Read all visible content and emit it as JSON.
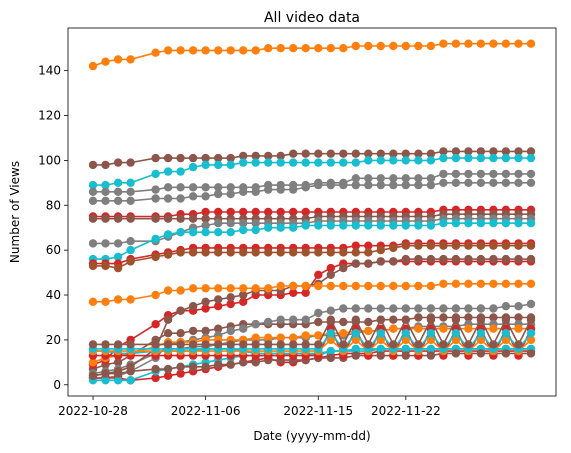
{
  "chart_data": {
    "type": "line",
    "title": "All video data",
    "xlabel": "Date (yyyy-mm-dd)",
    "ylabel": "Number of Views",
    "x_tick_labels": [
      "2022-10-28",
      "2022-11-06",
      "2022-11-15",
      "2022-11-22"
    ],
    "x_tick_dates": [
      "2022-10-28",
      "2022-11-06",
      "2022-11-15",
      "2022-11-22"
    ],
    "y_ticks": [
      0,
      20,
      40,
      60,
      80,
      100,
      120,
      140
    ],
    "ylim": [
      -5,
      159
    ],
    "xlim": [
      "2022-10-26",
      "2022-12-04"
    ],
    "grid": false,
    "legend": "none",
    "dates": [
      "2022-10-28",
      "2022-10-29",
      "2022-10-30",
      "2022-10-31",
      "2022-11-02",
      "2022-11-03",
      "2022-11-04",
      "2022-11-05",
      "2022-11-06",
      "2022-11-07",
      "2022-11-08",
      "2022-11-09",
      "2022-11-10",
      "2022-11-11",
      "2022-11-12",
      "2022-11-13",
      "2022-11-14",
      "2022-11-15",
      "2022-11-16",
      "2022-11-17",
      "2022-11-18",
      "2022-11-19",
      "2022-11-20",
      "2022-11-21",
      "2022-11-22",
      "2022-11-23",
      "2022-11-24",
      "2022-11-25",
      "2022-11-26",
      "2022-11-27",
      "2022-11-28",
      "2022-11-29",
      "2022-11-30",
      "2022-12-01",
      "2022-12-02"
    ],
    "series": [
      {
        "color": "#ff7f0e",
        "values": [
          142,
          144,
          145,
          145,
          148,
          149,
          149,
          149,
          149,
          149,
          149,
          149,
          149,
          150,
          150,
          150,
          150,
          150,
          150,
          150,
          151,
          151,
          151,
          151,
          151,
          151,
          151,
          152,
          152,
          152,
          152,
          152,
          152,
          152,
          152
        ]
      },
      {
        "color": "#8c564b",
        "values": [
          98,
          98,
          99,
          99,
          101,
          101,
          101,
          101,
          101,
          101,
          101,
          102,
          102,
          102,
          102,
          103,
          103,
          103,
          103,
          103,
          103,
          103,
          103,
          103,
          103,
          103,
          103,
          104,
          104,
          104,
          104,
          104,
          104,
          104,
          104
        ]
      },
      {
        "color": "#17becf",
        "values": [
          89,
          89,
          90,
          90,
          94,
          95,
          95,
          97,
          98,
          98,
          98,
          99,
          99,
          99,
          99,
          99,
          99,
          99,
          99,
          99,
          99,
          100,
          100,
          100,
          100,
          100,
          100,
          101,
          101,
          101,
          101,
          101,
          101,
          101,
          101
        ]
      },
      {
        "color": "#7f7f7f",
        "values": [
          86,
          86,
          86,
          86,
          87,
          88,
          88,
          88,
          88,
          88,
          88,
          88,
          88,
          89,
          89,
          89,
          89,
          90,
          90,
          90,
          92,
          92,
          92,
          92,
          92,
          92,
          92,
          94,
          94,
          94,
          94,
          94,
          94,
          94,
          94
        ]
      },
      {
        "color": "#7f7f7f",
        "values": [
          82,
          82,
          82,
          82,
          83,
          83,
          83,
          84,
          84,
          85,
          85,
          86,
          86,
          87,
          87,
          87,
          88,
          89,
          89,
          89,
          89,
          89,
          89,
          89,
          89,
          89,
          89,
          90,
          90,
          90,
          90,
          90,
          90,
          90,
          90
        ]
      },
      {
        "color": "#d62728",
        "values": [
          75,
          75,
          75,
          75,
          75,
          75,
          76,
          76,
          77,
          77,
          77,
          77,
          77,
          77,
          77,
          77,
          77,
          77,
          77,
          77,
          77,
          77,
          77,
          77,
          77,
          77,
          77,
          78,
          78,
          78,
          78,
          78,
          78,
          78,
          78
        ]
      },
      {
        "color": "#8c564b",
        "values": [
          74,
          74,
          74,
          74,
          74,
          74,
          74,
          74,
          74,
          74,
          74,
          74,
          74,
          74,
          74,
          74,
          74,
          75,
          75,
          75,
          75,
          75,
          75,
          75,
          75,
          75,
          75,
          76,
          76,
          76,
          76,
          76,
          76,
          76,
          76
        ]
      },
      {
        "color": "#7f7f7f",
        "values": [
          63,
          63,
          63,
          64,
          64,
          66,
          68,
          70,
          71,
          72,
          72,
          72,
          72,
          72,
          72,
          72,
          72,
          73,
          73,
          73,
          73,
          73,
          73,
          73,
          73,
          73,
          73,
          74,
          74,
          74,
          74,
          74,
          74,
          74,
          74
        ]
      },
      {
        "color": "#17becf",
        "values": [
          56,
          56,
          57,
          60,
          65,
          67,
          68,
          68,
          68,
          68,
          68,
          69,
          69,
          70,
          70,
          70,
          71,
          71,
          71,
          71,
          71,
          71,
          71,
          71,
          71,
          71,
          71,
          72,
          72,
          72,
          72,
          72,
          72,
          72,
          72
        ]
      },
      {
        "color": "#d62728",
        "values": [
          54,
          54,
          54,
          56,
          58,
          59,
          60,
          61,
          61,
          61,
          61,
          61,
          61,
          61,
          61,
          61,
          61,
          61,
          61,
          61,
          62,
          62,
          62,
          62,
          63,
          63,
          63,
          63,
          63,
          63,
          63,
          63,
          63,
          63,
          63
        ]
      },
      {
        "color": "#a0522d",
        "values": [
          53,
          53,
          52,
          55,
          57,
          58,
          59,
          59,
          59,
          59,
          59,
          59,
          59,
          59,
          59,
          59,
          59,
          59,
          59,
          59,
          59,
          59,
          60,
          61,
          62,
          62,
          62,
          62,
          62,
          62,
          62,
          62,
          62,
          62,
          62
        ]
      },
      {
        "color": "#ff7f0e",
        "values": [
          37,
          37,
          38,
          38,
          40,
          42,
          42,
          43,
          43,
          43,
          43,
          43,
          43,
          43,
          44,
          44,
          44,
          44,
          44,
          44,
          44,
          44,
          44,
          44,
          44,
          44,
          44,
          45,
          45,
          45,
          45,
          45,
          45,
          45,
          45
        ]
      }
    ],
    "sawtooth_series": [
      {
        "color": "#d62728",
        "low": 13,
        "high": 25
      },
      {
        "color": "#ff7f0e",
        "low": 15,
        "high": 20
      },
      {
        "color": "#17becf",
        "low": 16,
        "high": 23
      },
      {
        "color": "#8c564b",
        "low": 18,
        "high": 29
      }
    ],
    "low_series": [
      {
        "color": "#8c564b",
        "values": [
          7,
          9,
          10,
          13,
          20,
          23,
          23,
          24,
          24,
          25,
          26,
          27,
          27,
          27,
          27,
          27,
          27,
          28,
          28,
          28,
          28,
          28,
          29,
          29,
          29,
          30,
          30,
          30,
          30,
          30,
          30,
          30,
          30,
          30,
          30
        ]
      },
      {
        "color": "#7f7f7f",
        "values": [
          5,
          6,
          7,
          9,
          14,
          16,
          16,
          17,
          17,
          18,
          19,
          20,
          20,
          20,
          21,
          21,
          21,
          22,
          22,
          22,
          23,
          24,
          24,
          25,
          25,
          26,
          26,
          26,
          26,
          27,
          27,
          27,
          27,
          27,
          27
        ]
      },
      {
        "color": "#d62728",
        "values": [
          9,
          11,
          17,
          20,
          27,
          31,
          33,
          33,
          34,
          35,
          36,
          37,
          40,
          40,
          40,
          41,
          41,
          49,
          52,
          54,
          54,
          54,
          55,
          55,
          55,
          55,
          55,
          55,
          55,
          55,
          55,
          55,
          55,
          55,
          55
        ]
      },
      {
        "color": "#8c564b",
        "values": [
          4,
          5,
          6,
          8,
          16,
          29,
          33,
          35,
          37,
          38,
          39,
          40,
          42,
          42,
          42,
          44,
          44,
          45,
          49,
          52,
          54,
          54,
          55,
          55,
          56,
          56,
          56,
          56,
          56,
          56,
          56,
          56,
          56,
          56,
          56
        ]
      },
      {
        "color": "#7f7f7f",
        "values": [
          3,
          3,
          4,
          6,
          12,
          18,
          19,
          20,
          21,
          22,
          24,
          25,
          27,
          28,
          29,
          29,
          29,
          32,
          33,
          34,
          34,
          34,
          34,
          34,
          34,
          34,
          34,
          34,
          34,
          34,
          34,
          34,
          35,
          35,
          36
        ]
      },
      {
        "color": "#ff7f0e",
        "values": [
          10,
          12,
          13,
          14,
          17,
          19,
          19,
          19,
          20,
          20,
          20,
          20,
          21,
          21,
          21,
          21,
          22,
          22,
          23,
          23,
          24,
          24,
          24,
          25,
          25,
          25,
          25,
          25,
          25,
          25,
          25,
          25,
          25,
          25,
          25
        ]
      },
      {
        "color": "#17becf",
        "values": [
          15,
          15,
          14,
          14,
          15,
          15,
          15,
          15,
          16,
          16,
          16,
          15,
          14,
          14,
          14,
          14,
          14,
          13,
          15,
          15,
          16,
          16,
          16,
          16,
          16,
          16,
          16,
          16,
          16,
          16,
          16,
          16,
          16,
          16,
          16
        ]
      },
      {
        "color": "#d62728",
        "values": [
          3,
          3,
          3,
          2,
          3,
          4,
          5,
          6,
          7,
          8,
          9,
          10,
          11,
          12,
          10,
          10,
          11,
          12,
          13,
          14,
          14,
          14,
          15,
          15,
          15,
          15,
          15,
          15,
          15,
          15,
          15,
          15,
          15,
          15,
          15
        ]
      },
      {
        "color": "#17becf",
        "values": [
          2,
          2,
          2,
          2,
          6,
          7,
          8,
          9,
          10,
          11,
          12,
          13,
          13,
          13,
          13,
          14,
          14,
          14,
          15,
          15,
          15,
          15,
          16,
          16,
          16,
          16,
          16,
          16,
          16,
          16,
          16,
          16,
          16,
          16,
          16
        ]
      },
      {
        "color": "#8c564b",
        "values": [
          4,
          5,
          5,
          6,
          7,
          7,
          8,
          8,
          8,
          9,
          9,
          10,
          10,
          11,
          11,
          11,
          11,
          12,
          12,
          12,
          13,
          13,
          13,
          13,
          13,
          13,
          13,
          14,
          14,
          14,
          14,
          14,
          14,
          14,
          14
        ]
      }
    ]
  }
}
